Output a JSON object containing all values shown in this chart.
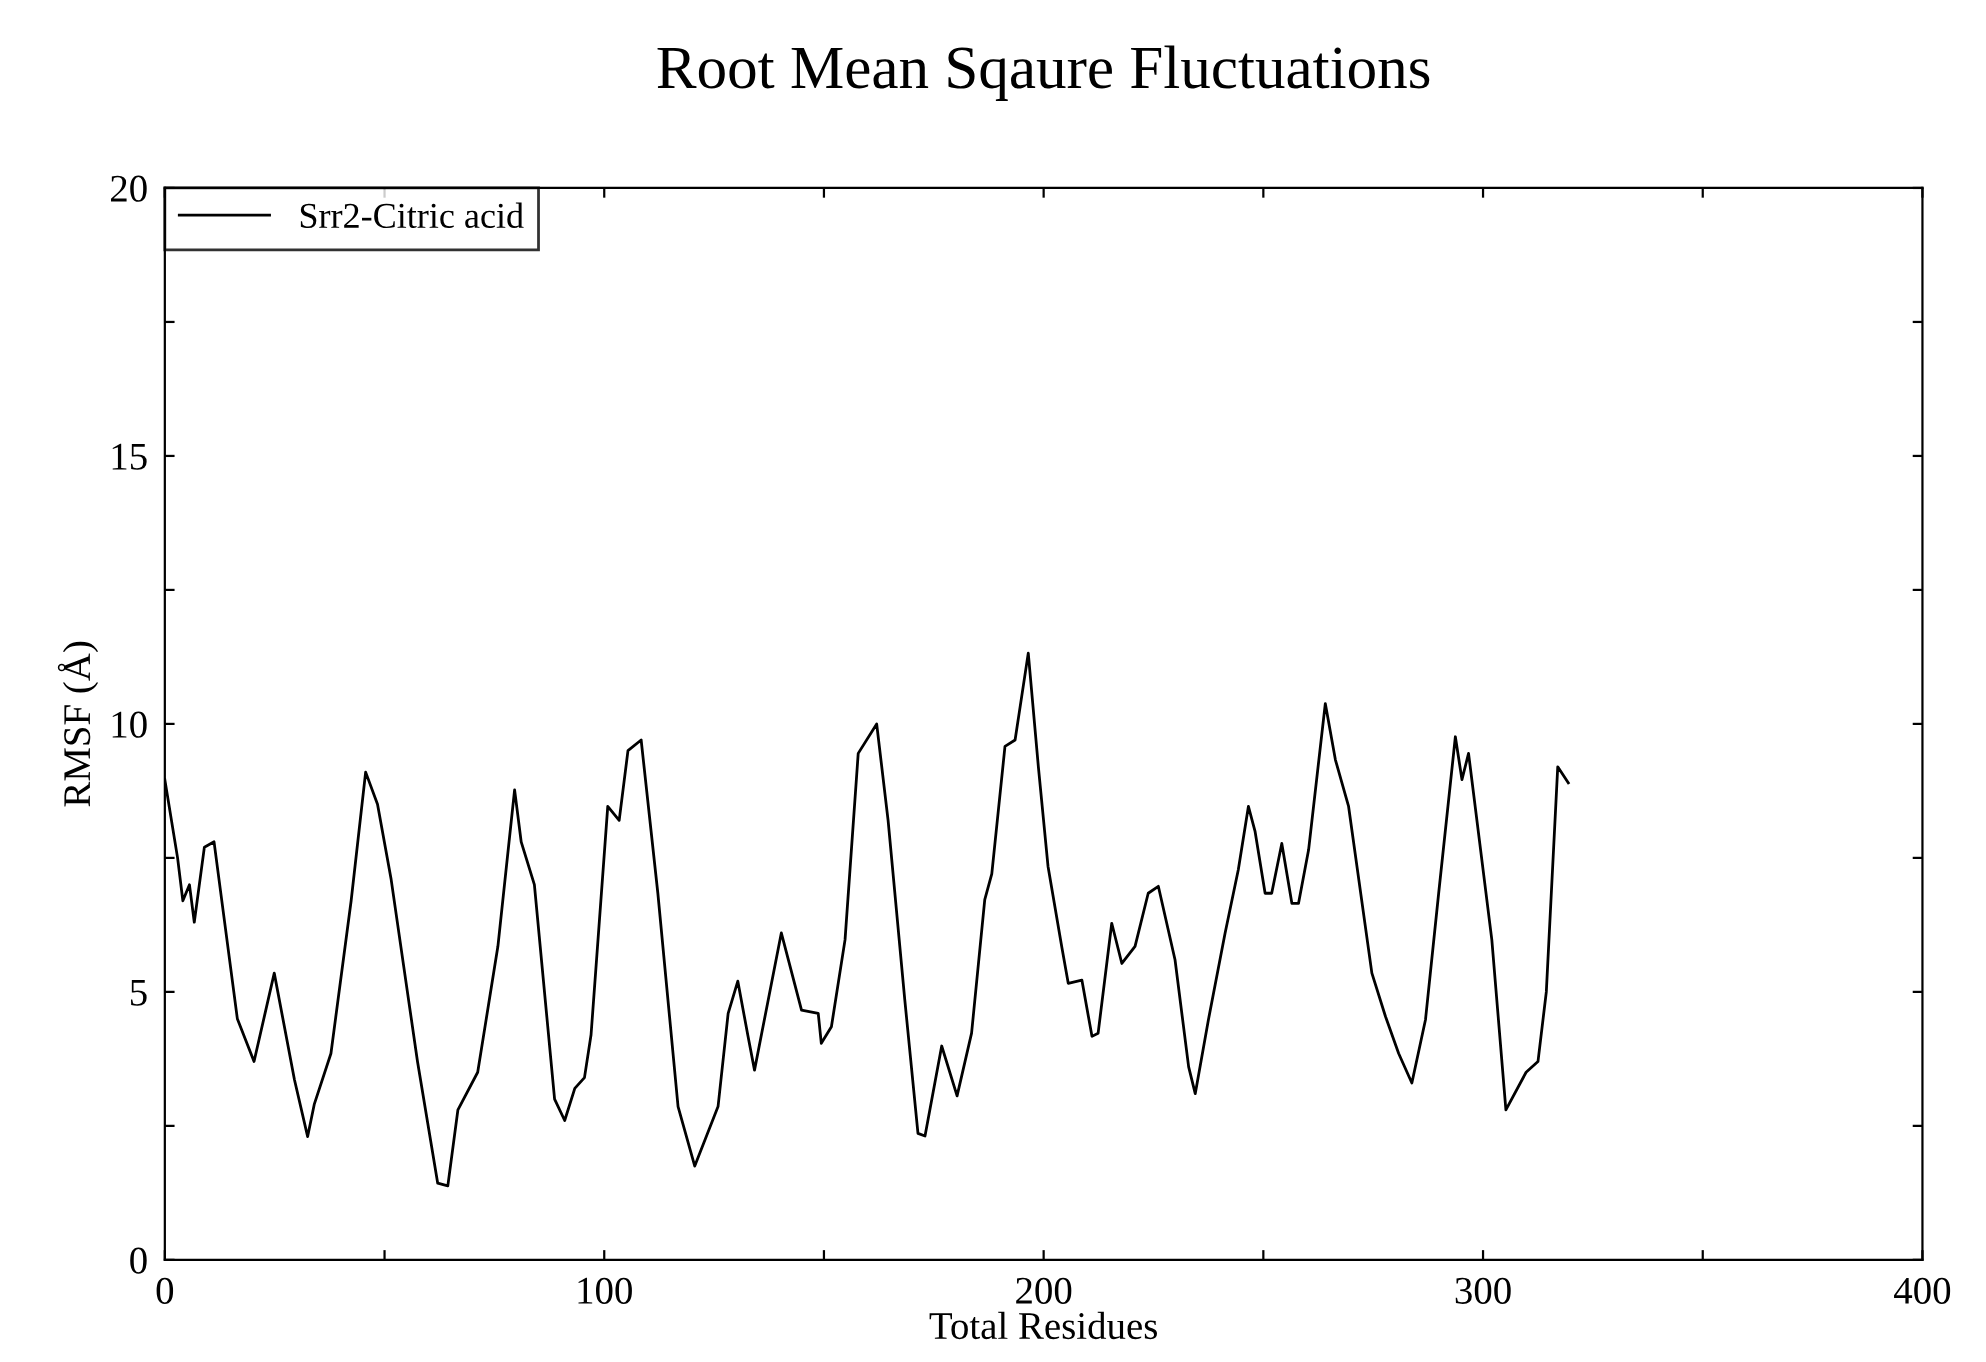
{
  "chart_data": {
    "type": "line",
    "title": "Root Mean Sqaure Fluctuations",
    "xlabel": "Total Residues",
    "ylabel": "RMSF (Å)",
    "xlim": [
      0,
      400
    ],
    "ylim": [
      0,
      20
    ],
    "xticks": [
      0,
      {
        "value": 50,
        "label": null
      },
      100,
      {
        "value": 150,
        "label": null
      },
      200,
      {
        "value": 250,
        "label": null
      },
      300,
      {
        "value": 350,
        "label": null
      },
      400
    ],
    "yticks": [
      0,
      {
        "value": 2.5,
        "label": null
      },
      5,
      {
        "value": 7.5,
        "label": null
      },
      10,
      {
        "value": 12.5,
        "label": null
      },
      15,
      {
        "value": 17.5,
        "label": null
      },
      20
    ],
    "grid": false,
    "legend": "top left",
    "marker": "none",
    "line_style": "solid",
    "series": [
      {
        "name": "Srr2-Citric acid",
        "color": "#000000",
        "x": [
          0,
          2.9,
          4.1,
          5.6,
          6.7,
          9.0,
          11.2,
          16.5,
          20.3,
          24.9,
          29.5,
          32.5,
          34,
          37.8,
          42.4,
          45.7,
          48.4,
          51.5,
          57.5,
          62.1,
          64.4,
          66.7,
          71.2,
          75.8,
          79.6,
          81.1,
          84.1,
          88.7,
          91,
          93.3,
          95.5,
          97,
          100.8,
          103.4,
          105.4,
          108.4,
          112.2,
          116.8,
          120.6,
          125.9,
          128.2,
          130.4,
          132.7,
          134.2,
          140.3,
          144.9,
          148.7,
          149.4,
          151.7,
          154.8,
          157.8,
          162,
          164.6,
          168.4,
          171.4,
          173,
          176.8,
          180.3,
          183.6,
          186.6,
          188.2,
          191.2,
          193.5,
          196.5,
          198.8,
          201,
          204.1,
          205.6,
          208.7,
          211,
          212.4,
          215.5,
          217.8,
          220.8,
          223.8,
          226.1,
          229.9,
          233,
          234.5,
          237.5,
          241.3,
          244.3,
          246.6,
          248.1,
          250.4,
          251.9,
          254.2,
          256.5,
          258,
          260.3,
          264.1,
          266.4,
          269.4,
          274.7,
          277.8,
          280.8,
          283.8,
          286.9,
          289.9,
          293.7,
          295.2,
          296.7,
          302,
          305.2,
          309.8,
          312.5,
          314.4,
          317,
          319.4
        ],
        "values": [
          8.96,
          7.5,
          6.7,
          7.0,
          6.3,
          7.7,
          7.8,
          4.5,
          3.7,
          5.35,
          3.36,
          2.3,
          2.9,
          3.85,
          6.7,
          9.1,
          8.5,
          7.1,
          3.7,
          1.43,
          1.38,
          2.8,
          3.5,
          5.85,
          8.77,
          7.8,
          7.0,
          3.0,
          2.6,
          3.2,
          3.4,
          4.2,
          8.46,
          8.2,
          9.5,
          9.7,
          6.84,
          2.86,
          1.75,
          2.86,
          4.6,
          5.2,
          4.18,
          3.54,
          6.1,
          4.66,
          4.6,
          4.04,
          4.35,
          5.97,
          9.45,
          10.0,
          8.2,
          4.85,
          2.36,
          2.31,
          3.99,
          3.06,
          4.23,
          6.72,
          7.2,
          9.58,
          9.7,
          11.32,
          9.2,
          7.34,
          5.85,
          5.16,
          5.22,
          4.17,
          4.23,
          6.28,
          5.53,
          5.85,
          6.84,
          6.97,
          5.6,
          3.6,
          3.1,
          4.48,
          6.1,
          7.28,
          8.46,
          8.0,
          6.84,
          6.84,
          7.77,
          6.65,
          6.65,
          7.65,
          10.38,
          9.33,
          8.46,
          5.35,
          4.54,
          3.85,
          3.3,
          4.48,
          6.84,
          9.76,
          8.96,
          9.45,
          5.97,
          2.8,
          3.5,
          3.7,
          5.0,
          9.2,
          8.9
        ]
      }
    ]
  }
}
